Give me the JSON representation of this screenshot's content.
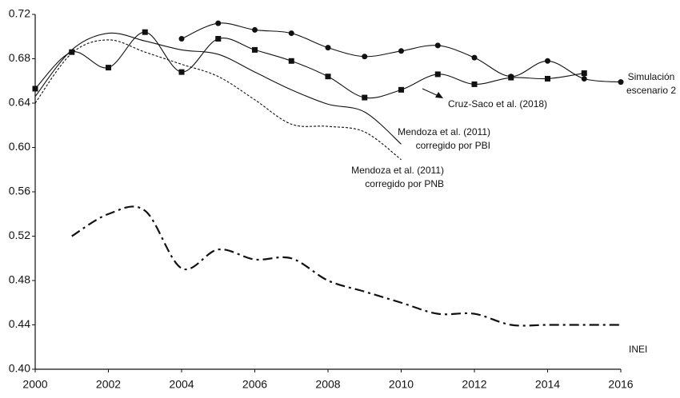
{
  "chart_data": {
    "type": "line",
    "x": [
      2000,
      2001,
      2002,
      2003,
      2004,
      2005,
      2006,
      2007,
      2008,
      2009,
      2010,
      2011,
      2012,
      2013,
      2014,
      2015,
      2016
    ],
    "xlim": [
      2000,
      2016
    ],
    "xticks": [
      2000,
      2002,
      2004,
      2006,
      2008,
      2010,
      2012,
      2014,
      2016
    ],
    "ylim": [
      0.4,
      0.72
    ],
    "yticks": [
      {
        "value": 0.4,
        "label": "0.40"
      },
      0.44,
      0.48,
      0.52,
      0.56,
      {
        "value": 0.6,
        "label": "0.60"
      },
      0.64,
      0.68,
      0.72
    ],
    "grid": false,
    "series": [
      {
        "name": "Simulación escenario 2",
        "color": "#111111",
        "marker": "circle",
        "dash": "solid",
        "values": [
          null,
          null,
          null,
          null,
          0.698,
          0.712,
          0.706,
          0.703,
          0.69,
          0.682,
          0.687,
          0.692,
          0.681,
          0.664,
          0.678,
          0.662,
          0.659
        ]
      },
      {
        "name": "Cruz-Saco et al. (2018)",
        "color": "#111111",
        "marker": "square",
        "dash": "solid",
        "values": [
          0.653,
          0.686,
          0.672,
          0.704,
          0.668,
          0.698,
          0.688,
          0.678,
          0.664,
          0.645,
          0.652,
          0.666,
          0.657,
          0.663,
          0.662,
          0.667,
          null
        ]
      },
      {
        "name": "Mendoza et al. (2011) corregido por PBI",
        "color": "#111111",
        "marker": null,
        "dash": "solid",
        "values": [
          0.646,
          0.688,
          0.703,
          0.696,
          0.688,
          0.684,
          0.668,
          0.652,
          0.639,
          0.632,
          0.603,
          null,
          null,
          null,
          null,
          null,
          null
        ]
      },
      {
        "name": "Mendoza et al. (2011) corregido por PNB",
        "color": "#111111",
        "marker": null,
        "dash": "dashed",
        "values": [
          0.64,
          0.685,
          0.697,
          0.686,
          0.675,
          0.664,
          0.643,
          0.621,
          0.619,
          0.614,
          0.589,
          null,
          null,
          null,
          null,
          null,
          null
        ]
      },
      {
        "name": "INEI",
        "color": "#111111",
        "marker": null,
        "dash": "dashdot",
        "values": [
          null,
          0.52,
          0.54,
          0.543,
          0.491,
          0.508,
          0.499,
          0.5,
          0.48,
          0.47,
          0.46,
          0.45,
          0.45,
          0.44,
          0.44,
          0.44,
          0.44
        ]
      }
    ]
  }
}
